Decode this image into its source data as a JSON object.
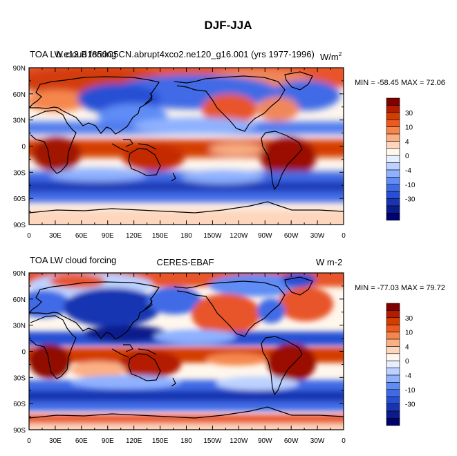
{
  "main_title": "DJF-JJA",
  "panels": [
    {
      "title_left": "TOA LW cloud forcing",
      "title_center": "b.e13.B1850C5CN.abrupt4xco2.ne120_g16.001 (yrs 1977-1996)",
      "units": "W/m",
      "units_sup": "2",
      "stats": "MIN = -58.45 MAX =  72.06"
    },
    {
      "title_left": "TOA LW cloud forcing",
      "title_center": "CERES-EBAF",
      "units": "W m-2",
      "units_sup": "",
      "stats": "MIN = -77.03 MAX = 79.72"
    }
  ],
  "lat_labels": [
    "90N",
    "60N",
    "30N",
    "0",
    "30S",
    "60S",
    "90S"
  ],
  "lon_labels": [
    "0",
    "30E",
    "60E",
    "90E",
    "120E",
    "150E",
    "180",
    "150W",
    "120W",
    "90W",
    "60W",
    "30W",
    "0"
  ],
  "colorbar": {
    "labels": [
      "30",
      "10",
      "4",
      "0",
      "-4",
      "-10",
      "-30"
    ],
    "colors": [
      "#800000",
      "#b31c00",
      "#d43d00",
      "#ec5a1e",
      "#f5874e",
      "#fbb084",
      "#fdd6bd",
      "#fff6ec",
      "#e6efff",
      "#bcd1ff",
      "#8fb1ff",
      "#5f8cf5",
      "#3f6ae6",
      "#274fd4",
      "#1834b2",
      "#0a1c8c",
      "#00006e"
    ]
  }
}
